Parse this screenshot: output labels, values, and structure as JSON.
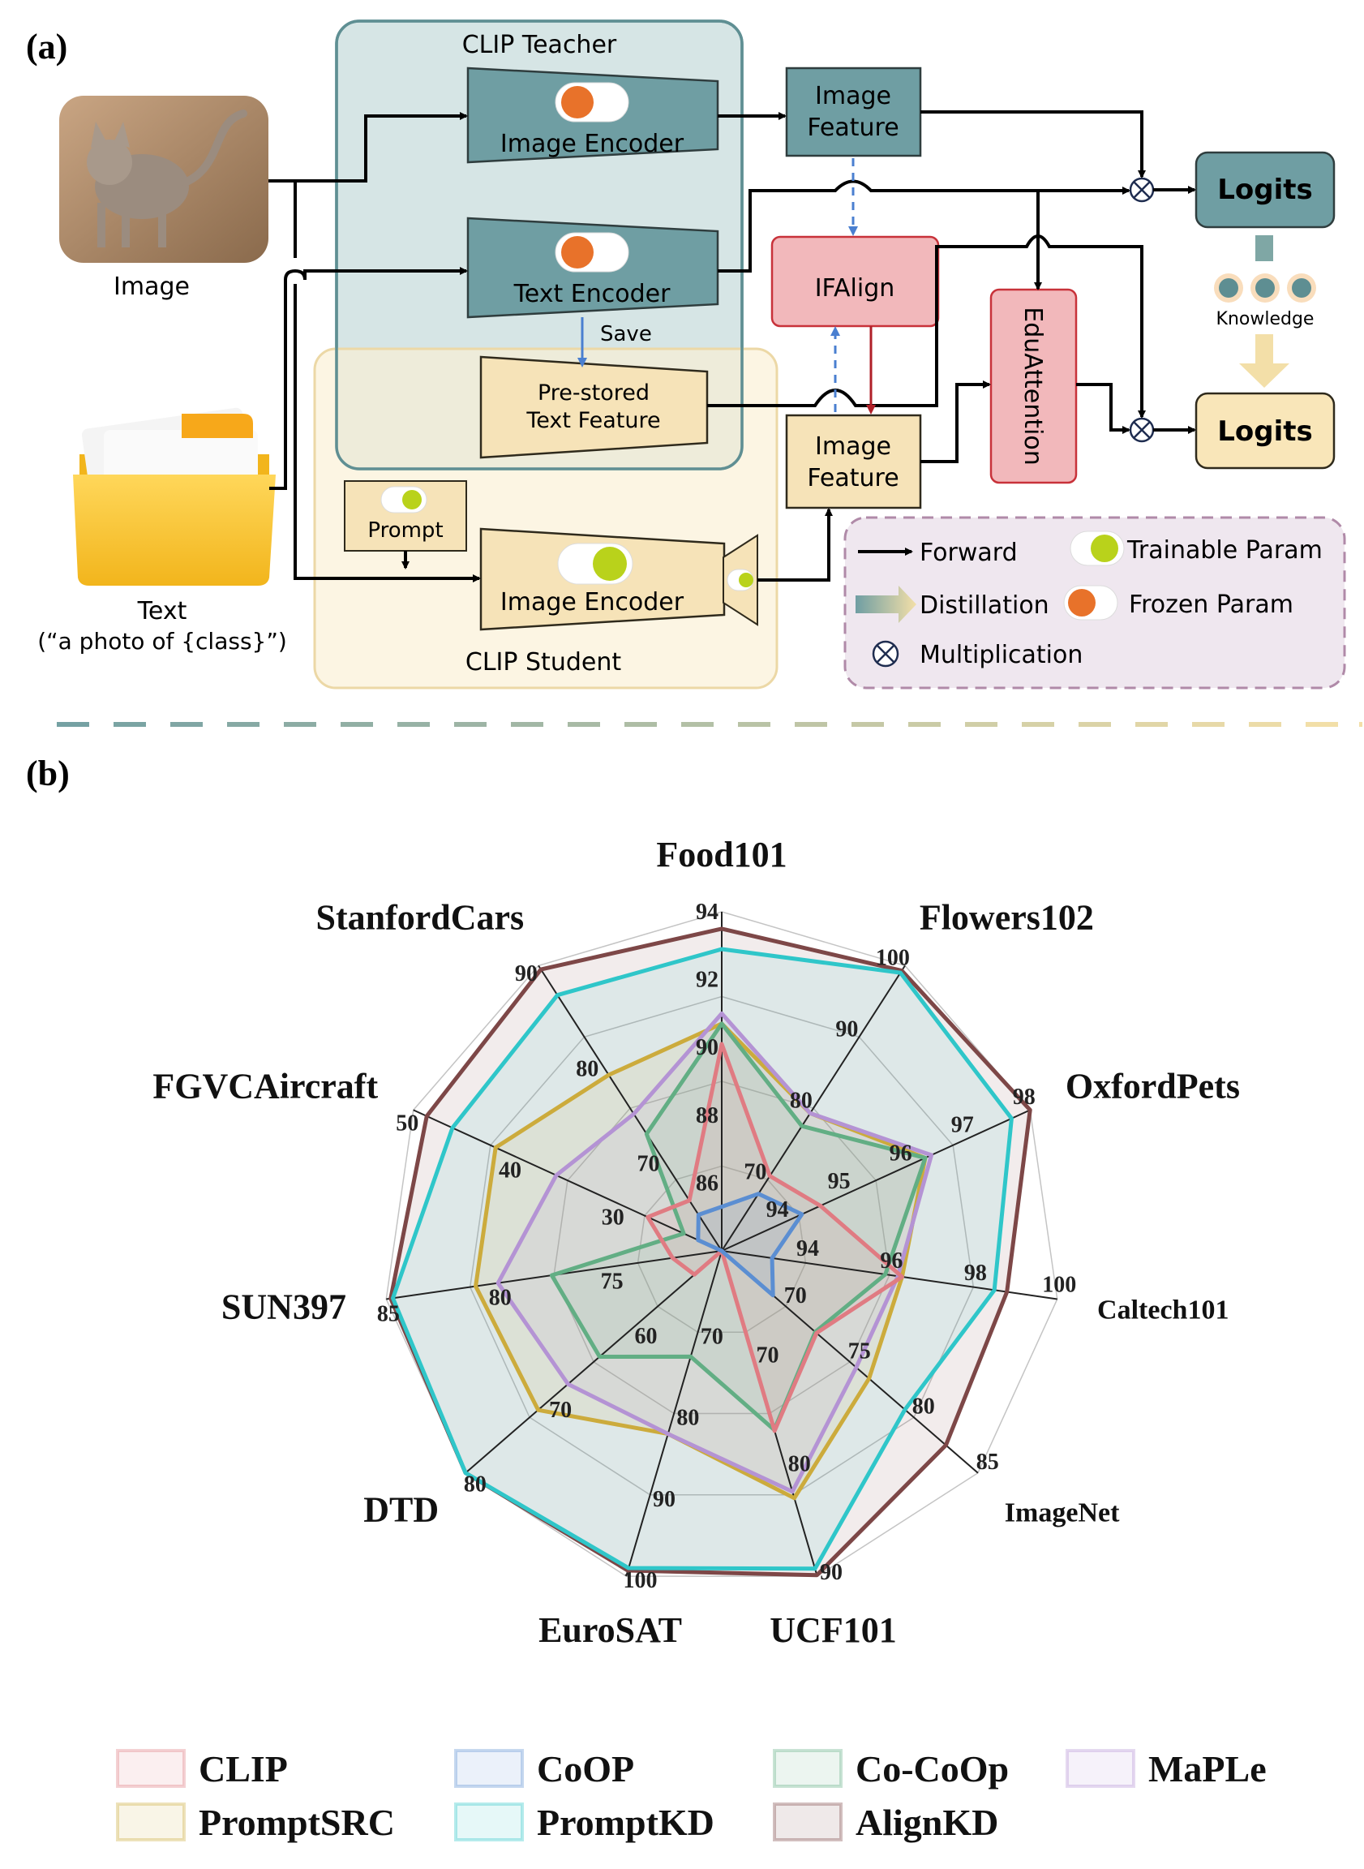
{
  "panel_a": {
    "label": "(a)",
    "teacher_title": "CLIP Teacher",
    "student_title": "CLIP Student",
    "image_label": "Image",
    "text_label": "Text",
    "text_prompt": "(“a photo of {class}”)",
    "teacher_image_encoder": "Image Encoder",
    "teacher_text_encoder": "Text Encoder",
    "student_image_encoder": "Image Encoder",
    "save_label": "Save",
    "prestored_line1": "Pre-stored",
    "prestored_line2": "Text Feature",
    "prompt_label": "Prompt",
    "teacher_feature_line1": "Image",
    "teacher_feature_line2": "Feature",
    "student_feature_line1": "Image",
    "student_feature_line2": "Feature",
    "ifalign_label": "IFAlign",
    "eduattention_label": "EduAttention",
    "teacher_logits": "Logits",
    "student_logits": "Logits",
    "knowledge_label": "Knowledge",
    "legend": {
      "forward": "Forward",
      "distillation": "Distillation",
      "multiplication": "Multiplication",
      "trainable": "Trainable Param",
      "frozen": "Frozen Param"
    }
  },
  "panel_b": {
    "label": "(b)"
  },
  "colors": {
    "teacher_fill": "#cfe0e0",
    "teacher_border": "#5f8f93",
    "teacher_block": "#6f9ea3",
    "student_fill": "#fbf3df",
    "student_border": "#ecd8a6",
    "student_block": "#f6e3b8",
    "align_fill": "#f2b8bb",
    "align_border": "#c8323a",
    "legend_fill": "#efe7ef",
    "legend_border": "#b08aa8",
    "frozen": "#e8722a",
    "trainable": "#b9d21b"
  },
  "chart_data": {
    "type": "radar",
    "axes": [
      {
        "name": "Food101",
        "ticks": [
          "86",
          "88",
          "90",
          "92",
          "94"
        ],
        "min": 84,
        "max": 94
      },
      {
        "name": "Flowers102",
        "ticks": [
          "70",
          "80",
          "90",
          "100"
        ],
        "min": 60,
        "max": 100
      },
      {
        "name": "OxfordPets",
        "ticks": [
          "94",
          "95",
          "96",
          "97",
          "98"
        ],
        "min": 93,
        "max": 98
      },
      {
        "name": "Caltech101",
        "ticks": [
          "94",
          "96",
          "98",
          "100"
        ],
        "min": 92,
        "max": 100
      },
      {
        "name": "ImageNet",
        "ticks": [
          "70",
          "75",
          "80",
          "85"
        ],
        "min": 65,
        "max": 85
      },
      {
        "name": "UCF101",
        "ticks": [
          "70",
          "80",
          "90"
        ],
        "min": 60,
        "max": 90
      },
      {
        "name": "EuroSAT",
        "ticks": [
          "70",
          "80",
          "90",
          "100"
        ],
        "min": 60,
        "max": 100
      },
      {
        "name": "DTD",
        "ticks": [
          "60",
          "70",
          "80"
        ],
        "min": 50,
        "max": 80
      },
      {
        "name": "SUN397",
        "ticks": [
          "75",
          "80",
          "85"
        ],
        "min": 70,
        "max": 85
      },
      {
        "name": "FGVCAircraft",
        "ticks": [
          "30",
          "40",
          "50"
        ],
        "min": 20,
        "max": 50
      },
      {
        "name": "StanfordCars",
        "ticks": [
          "70",
          "80",
          "90"
        ],
        "min": 60,
        "max": 90
      }
    ],
    "series": [
      {
        "name": "CLIP",
        "color": "#e07b82",
        "values": [
          90.1,
          70.5,
          94.6,
          96.3,
          72.4,
          76.6,
          56.5,
          53.2,
          72.2,
          27.2,
          65.3
        ]
      },
      {
        "name": "CoOP",
        "color": "#5b8ed2",
        "values": [
          85.3,
          68.0,
          94.3,
          93.2,
          69.0,
          58.0,
          54.7,
          44.3,
          70.0,
          22.3,
          63.8
        ]
      },
      {
        "name": "Co-CoOp",
        "color": "#62ae84",
        "values": [
          90.7,
          77.5,
          96.3,
          95.9,
          72.3,
          76.5,
          73.0,
          64.3,
          77.6,
          23.7,
          72.3
        ]
      },
      {
        "name": "MaPLe",
        "color": "#b493d4",
        "values": [
          91.0,
          79.3,
          96.4,
          96.2,
          75.5,
          82.2,
          82.5,
          68.0,
          80.0,
          36.1,
          74.4
        ]
      },
      {
        "name": "PromptSRC",
        "color": "#ccab3c",
        "values": [
          90.7,
          79.3,
          96.3,
          96.3,
          76.5,
          82.8,
          82.5,
          71.5,
          81.0,
          42.0,
          78.5
        ]
      },
      {
        "name": "PromptKD",
        "color": "#2fc6c9",
        "values": [
          92.9,
          99.0,
          97.7,
          98.5,
          79.3,
          89.3,
          99.0,
          81.6,
          84.7,
          46.2,
          86.9
        ]
      },
      {
        "name": "AlignKD",
        "color": "#7d4747",
        "values": [
          93.5,
          99.3,
          98.1,
          98.8,
          82.5,
          89.9,
          99.3,
          82.4,
          84.8,
          48.7,
          89.6
        ]
      }
    ],
    "fill_order": [
      "AlignKD",
      "PromptKD",
      "PromptSRC",
      "MaPLe",
      "Co-CoOp",
      "CLIP",
      "CoOP"
    ],
    "grid": true
  }
}
